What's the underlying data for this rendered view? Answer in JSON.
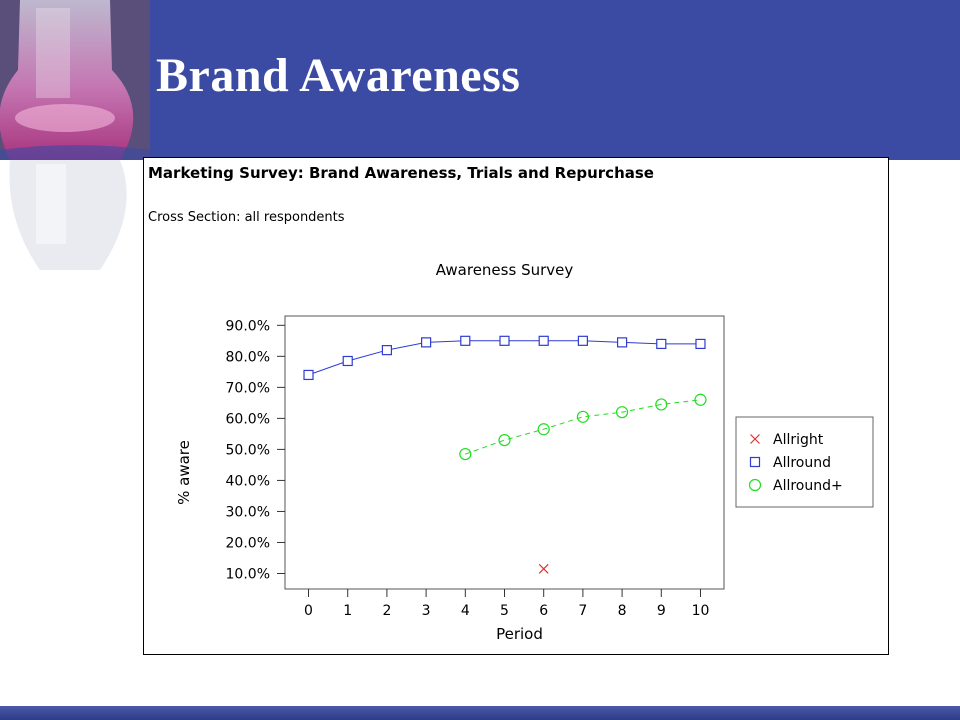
{
  "slide": {
    "title": "Brand Awareness"
  },
  "panel": {
    "heading": "Marketing Survey: Brand Awareness, Trials and Repurchase",
    "subheading": "Cross Section: all respondents"
  },
  "colors": {
    "header_bg": "#3b4aa3",
    "allright": "#e03030",
    "allround": "#2f3ccf",
    "allround_plus": "#22dd22"
  },
  "chart_data": {
    "type": "line",
    "title": "Awareness Survey",
    "xlabel": "Period",
    "ylabel": "% aware",
    "x": [
      0,
      1,
      2,
      3,
      4,
      5,
      6,
      7,
      8,
      9,
      10
    ],
    "x_tick_labels": [
      "0",
      "1",
      "2",
      "3",
      "4",
      "5",
      "6",
      "7",
      "8",
      "9",
      "10"
    ],
    "y_tick_values": [
      10,
      20,
      30,
      40,
      50,
      60,
      70,
      80,
      90
    ],
    "y_tick_labels": [
      "10.0%",
      "20.0%",
      "30.0%",
      "40.0%",
      "50.0%",
      "60.0%",
      "70.0%",
      "80.0%",
      "90.0%"
    ],
    "xlim": [
      -0.6,
      10.6
    ],
    "ylim": [
      5,
      93
    ],
    "grid": false,
    "legend_position": "right",
    "series": [
      {
        "name": "Allright",
        "marker": "x",
        "line": "none",
        "color": "#e03030",
        "points": [
          [
            6,
            11.5
          ]
        ]
      },
      {
        "name": "Allround",
        "marker": "square",
        "line": "solid",
        "color": "#2f3ccf",
        "points": [
          [
            0,
            74
          ],
          [
            1,
            78.5
          ],
          [
            2,
            82
          ],
          [
            3,
            84.5
          ],
          [
            4,
            85
          ],
          [
            5,
            85
          ],
          [
            6,
            85
          ],
          [
            7,
            85
          ],
          [
            8,
            84.5
          ],
          [
            9,
            84
          ],
          [
            10,
            84
          ]
        ]
      },
      {
        "name": "Allround+",
        "marker": "circle",
        "line": "dashed",
        "color": "#22dd22",
        "points": [
          [
            4,
            48.5
          ],
          [
            5,
            53
          ],
          [
            6,
            56.5
          ],
          [
            7,
            60.5
          ],
          [
            8,
            62
          ],
          [
            9,
            64.5
          ],
          [
            10,
            66
          ]
        ]
      }
    ]
  }
}
